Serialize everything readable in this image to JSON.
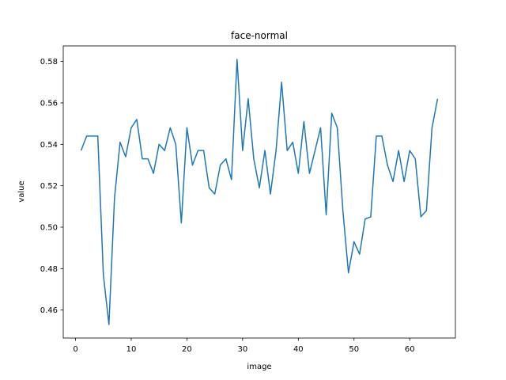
{
  "chart_data": {
    "type": "line",
    "title": "face-normal",
    "xlabel": "image",
    "ylabel": "value",
    "xlim": [
      -2.2,
      68.2
    ],
    "ylim": [
      0.4465,
      0.5875
    ],
    "xticks": [
      0,
      10,
      20,
      30,
      40,
      50,
      60
    ],
    "xtick_labels": [
      "0",
      "10",
      "20",
      "30",
      "40",
      "50",
      "60"
    ],
    "yticks": [
      0.46,
      0.48,
      0.5,
      0.52,
      0.54,
      0.56,
      0.58
    ],
    "ytick_labels": [
      "0.46",
      "0.48",
      "0.50",
      "0.52",
      "0.54",
      "0.56",
      "0.58"
    ],
    "grid": false,
    "series": [
      {
        "color": "#1f77b4",
        "x": [
          1,
          2,
          3,
          4,
          5,
          6,
          7,
          8,
          9,
          10,
          11,
          12,
          13,
          14,
          15,
          16,
          17,
          18,
          19,
          20,
          21,
          22,
          23,
          24,
          25,
          26,
          27,
          28,
          29,
          30,
          31,
          32,
          33,
          34,
          35,
          36,
          37,
          38,
          39,
          40,
          41,
          42,
          43,
          44,
          45,
          46,
          47,
          48,
          49,
          50,
          51,
          52,
          53,
          54,
          55,
          56,
          57,
          58,
          59,
          60,
          61,
          62,
          63,
          64,
          65
        ],
        "values": [
          0.537,
          0.544,
          0.544,
          0.544,
          0.477,
          0.453,
          0.514,
          0.541,
          0.534,
          0.548,
          0.552,
          0.533,
          0.533,
          0.526,
          0.54,
          0.537,
          0.548,
          0.54,
          0.502,
          0.548,
          0.53,
          0.537,
          0.537,
          0.519,
          0.516,
          0.53,
          0.533,
          0.523,
          0.581,
          0.537,
          0.562,
          0.533,
          0.519,
          0.537,
          0.516,
          0.537,
          0.57,
          0.537,
          0.541,
          0.526,
          0.551,
          0.526,
          0.537,
          0.548,
          0.506,
          0.555,
          0.548,
          0.508,
          0.478,
          0.493,
          0.487,
          0.504,
          0.505,
          0.544,
          0.544,
          0.53,
          0.522,
          0.537,
          0.522,
          0.537,
          0.533,
          0.505,
          0.508,
          0.548,
          0.562
        ]
      }
    ]
  }
}
